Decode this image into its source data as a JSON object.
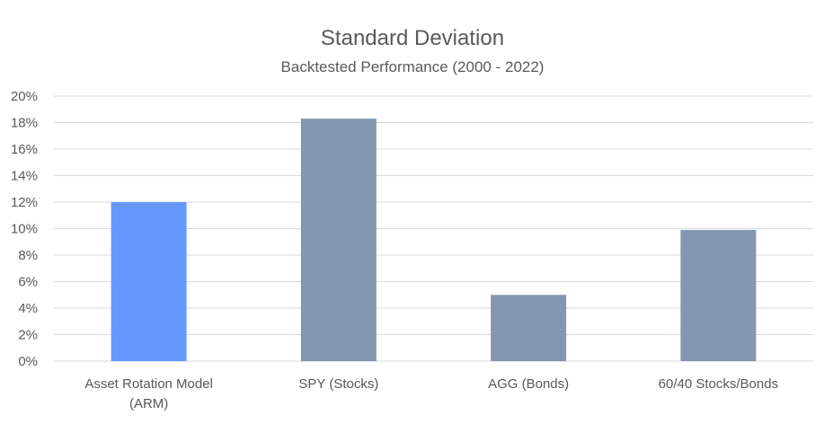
{
  "chart_data": {
    "type": "bar",
    "title": "Standard Deviation",
    "subtitle": "Backtested Performance (2000 - 2022)",
    "categories": [
      [
        "Asset Rotation Model",
        "(ARM)"
      ],
      [
        "SPY (Stocks)"
      ],
      [
        "AGG (Bonds)"
      ],
      [
        "60/40 Stocks/Bonds"
      ]
    ],
    "values": [
      0.12,
      0.183,
      0.05,
      0.099
    ],
    "bar_colors": [
      "#6699ff",
      "#8497b0",
      "#8497b0",
      "#8497b0"
    ],
    "ylim": [
      0,
      0.2
    ],
    "yticks": [
      "0%",
      "2%",
      "4%",
      "6%",
      "8%",
      "10%",
      "12%",
      "14%",
      "16%",
      "18%",
      "20%"
    ],
    "grid": true,
    "legend": "none"
  }
}
